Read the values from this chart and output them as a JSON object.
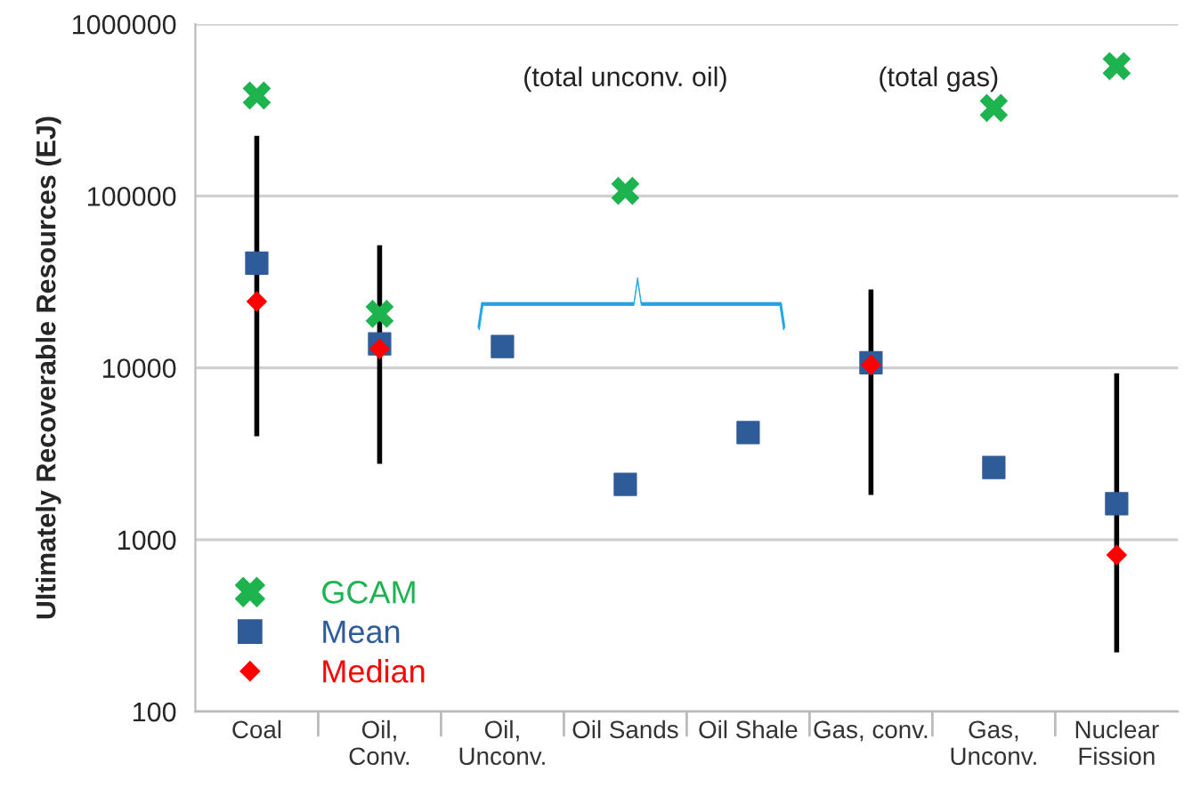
{
  "chart_data": {
    "type": "scatter",
    "ylabel": "Ultimately Recoverable Resources (EJ)",
    "categories": [
      "Coal",
      "Oil,\nConv.",
      "Oil,\nUnconv.",
      "Oil Sands",
      "Oil Shale",
      "Gas, conv.",
      "Gas,\nUnconv.",
      "Nuclear\nFission"
    ],
    "series": [
      {
        "name": "GCAM",
        "color": "#1db34f",
        "marker": "cross",
        "values": [
          384000,
          20600,
          null,
          107000,
          null,
          null,
          325000,
          570000
        ]
      },
      {
        "name": "Mean",
        "color": "#2e5c99",
        "marker": "square",
        "values": [
          40700,
          13800,
          13300,
          2100,
          4200,
          10700,
          2630,
          1620
        ],
        "errors": [
          [
            4000,
            224000
          ],
          [
            2760,
            51700
          ],
          null,
          null,
          null,
          [
            1820,
            28600
          ],
          null,
          [
            221,
            9300
          ]
        ]
      },
      {
        "name": "Median",
        "color": "#ff0000",
        "marker": "diamond",
        "values": [
          24300,
          12900,
          null,
          null,
          null,
          10400,
          null,
          815
        ]
      }
    ],
    "annotations": [
      "(total unconv. oil)",
      "(total gas)"
    ],
    "log": true,
    "ylim": [
      100,
      1000000
    ],
    "yticks": [
      100,
      1000,
      10000,
      100000,
      1000000
    ],
    "grid": "y",
    "legend": "bottom left"
  }
}
